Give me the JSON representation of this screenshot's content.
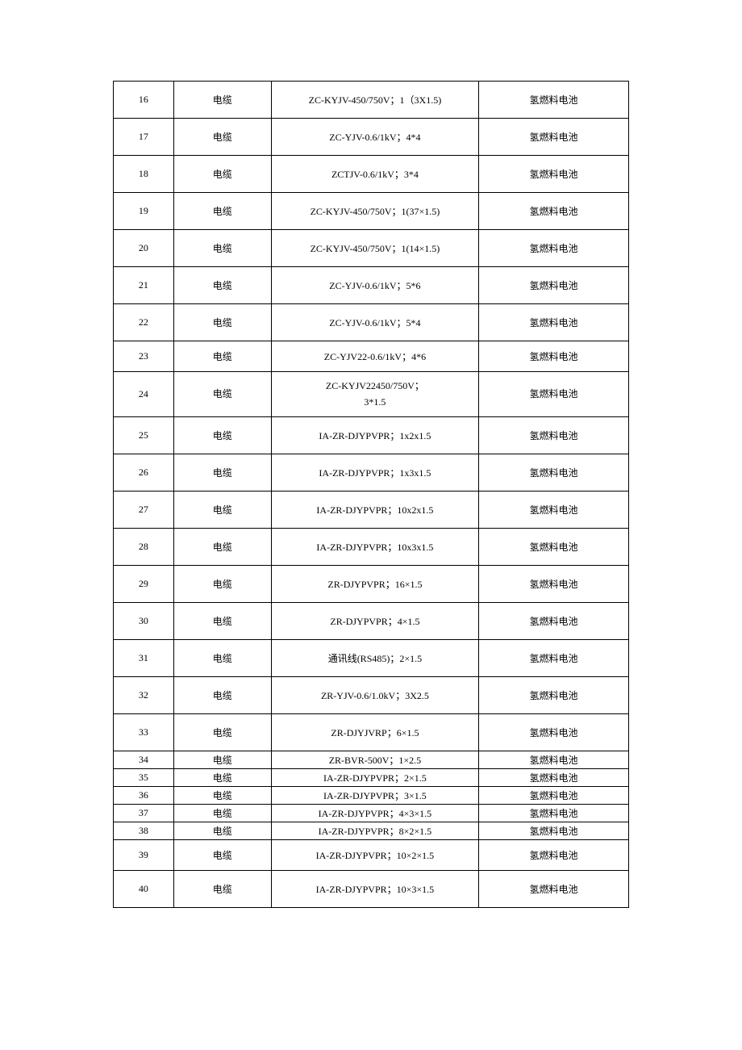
{
  "table": {
    "rows": [
      {
        "num": "16",
        "type": "电缆",
        "spec": "ZC-KYJV-450/750V；1（3X1.5)",
        "app": "氢燃料电池",
        "h": "h-tall"
      },
      {
        "num": "17",
        "type": "电缆",
        "spec": "ZC-YJV-0.6/1kV；4*4",
        "app": "氢燃料电池",
        "h": "h-tall"
      },
      {
        "num": "18",
        "type": "电缆",
        "spec": "ZCTJV-0.6/1kV；3*4",
        "app": "氢燃料电池",
        "h": "h-tall"
      },
      {
        "num": "19",
        "type": "电缆",
        "spec": "ZC-KYJV-450/750V；1(37×1.5)",
        "app": "氢燃料电池",
        "h": "h-tall"
      },
      {
        "num": "20",
        "type": "电缆",
        "spec": "ZC-KYJV-450/750V；1(14×1.5)",
        "app": "氢燃料电池",
        "h": "h-tall"
      },
      {
        "num": "21",
        "type": "电缆",
        "spec": "ZC-YJV-0.6/1kV；5*6",
        "app": "氢燃料电池",
        "h": "h-tall"
      },
      {
        "num": "22",
        "type": "电缆",
        "spec": "ZC-YJV-0.6/1kV；5*4",
        "app": "氢燃料电池",
        "h": "h-tall"
      },
      {
        "num": "23",
        "type": "电缆",
        "spec": "ZC-YJV22-0.6/1kV；4*6",
        "app": "氢燃料电池",
        "h": "h-mid"
      },
      {
        "num": "24",
        "type": "电缆",
        "spec": "ZC-KYJV22450/750V；\n3*1.5",
        "app": "氢燃料电池",
        "h": "h-double",
        "multiline": true
      },
      {
        "num": "25",
        "type": "电缆",
        "spec": "IA-ZR-DJYPVPR；1x2x1.5",
        "app": "氢燃料电池",
        "h": "h-tall"
      },
      {
        "num": "26",
        "type": "电缆",
        "spec": "IA-ZR-DJYPVPR；1x3x1.5",
        "app": "氢燃料电池",
        "h": "h-tall"
      },
      {
        "num": "27",
        "type": "电缆",
        "spec": "IA-ZR-DJYPVPR；10x2x1.5",
        "app": "氢燃料电池",
        "h": "h-tall"
      },
      {
        "num": "28",
        "type": "电缆",
        "spec": "IA-ZR-DJYPVPR；10x3x1.5",
        "app": "氢燃料电池",
        "h": "h-tall"
      },
      {
        "num": "29",
        "type": "电缆",
        "spec": "ZR-DJYPVPR；16×1.5",
        "app": "氢燃料电池",
        "h": "h-tall"
      },
      {
        "num": "30",
        "type": "电缆",
        "spec": "ZR-DJYPVPR；4×1.5",
        "app": "氢燃料电池",
        "h": "h-tall"
      },
      {
        "num": "31",
        "type": "电缆",
        "spec": "通讯线(RS485)；2×1.5",
        "app": "氢燃料电池",
        "h": "h-tall"
      },
      {
        "num": "32",
        "type": "电缆",
        "spec": "ZR-YJV-0.6/1.0kV；3X2.5",
        "app": "氢燃料电池",
        "h": "h-tall"
      },
      {
        "num": "33",
        "type": "电缆",
        "spec": "ZR-DJYJVRP；6×1.5",
        "app": "氢燃料电池",
        "h": "h-tall"
      },
      {
        "num": "34",
        "type": "电缆",
        "spec": "ZR-BVR-500V；1×2.5",
        "app": "氢燃料电池",
        "h": "h-short"
      },
      {
        "num": "35",
        "type": "电缆",
        "spec": "IA-ZR-DJYPVPR；2×1.5",
        "app": "氢燃料电池",
        "h": "h-short"
      },
      {
        "num": "36",
        "type": "电缆",
        "spec": "IA-ZR-DJYPVPR；3×1.5",
        "app": "氢燃料电池",
        "h": "h-short"
      },
      {
        "num": "37",
        "type": "电缆",
        "spec": "IA-ZR-DJYPVPR；4×3×1.5",
        "app": "氢燃料电池",
        "h": "h-short"
      },
      {
        "num": "38",
        "type": "电缆",
        "spec": "IA-ZR-DJYPVPR；8×2×1.5",
        "app": "氢燃料电池",
        "h": "h-short"
      },
      {
        "num": "39",
        "type": "电缆",
        "spec": "IA-ZR-DJYPVPR；10×2×1.5",
        "app": "氢燃料电池",
        "h": "h-mid"
      },
      {
        "num": "40",
        "type": "电缆",
        "spec": "IA-ZR-DJYPVPR；10×3×1.5",
        "app": "氢燃料电池",
        "h": "h-tall"
      }
    ]
  }
}
